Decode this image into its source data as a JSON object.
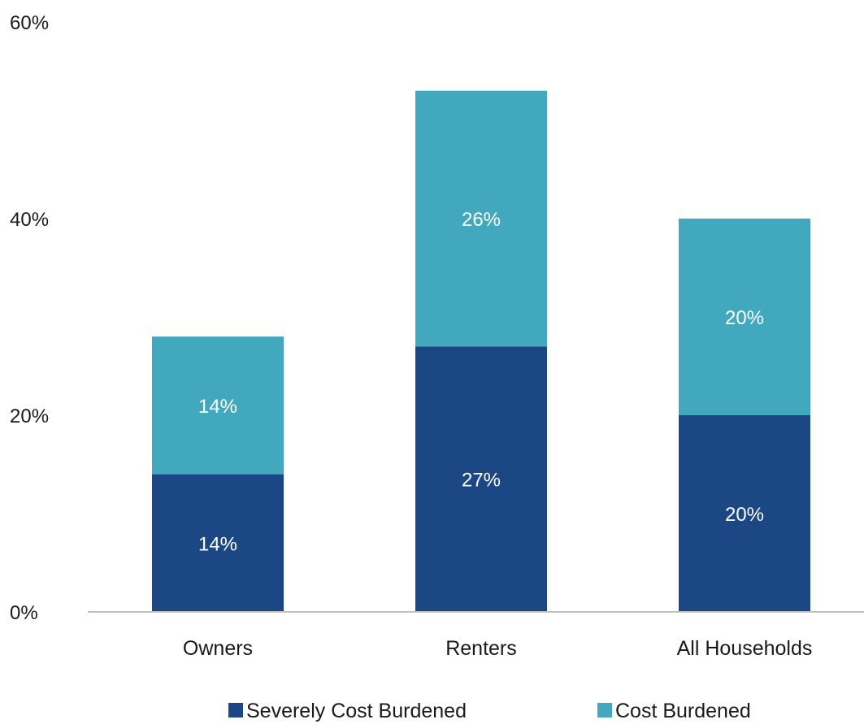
{
  "chart_data": {
    "type": "bar",
    "stacked": true,
    "categories": [
      "Owners",
      "Renters",
      "All Households"
    ],
    "series": [
      {
        "name": "Severely Cost Burdened",
        "values": [
          14,
          27,
          20
        ],
        "labels": [
          "14%",
          "27%",
          "20%"
        ],
        "color": "#1c4785"
      },
      {
        "name": "Cost Burdened",
        "values": [
          14,
          26,
          20
        ],
        "labels": [
          "14%",
          "26%",
          "20%"
        ],
        "color": "#42a8bd"
      }
    ],
    "yticks": [
      0,
      20,
      40,
      60
    ],
    "ytick_labels": [
      "0%",
      "20%",
      "40%",
      "60%"
    ],
    "ylim": [
      0,
      60
    ],
    "grid": false,
    "legend_position": "bottom"
  }
}
